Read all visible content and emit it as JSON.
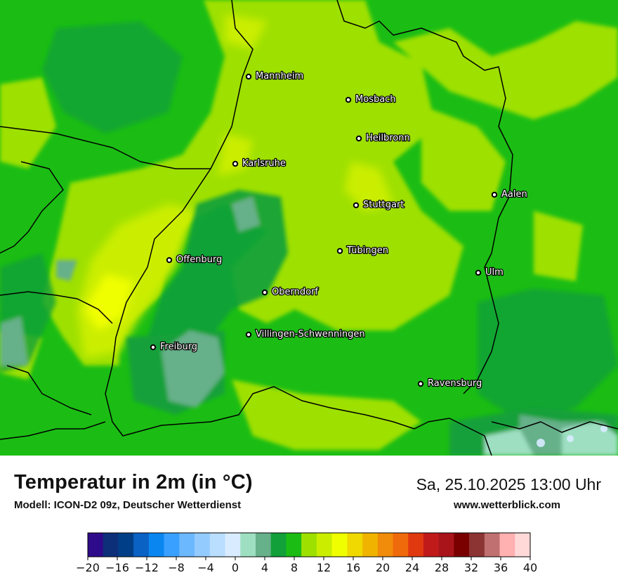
{
  "title": "Temperatur in 2m (in °C)",
  "subtitle": "Modell: ICON-D2 09z, Deutscher Wetterdienst",
  "datetime": "Sa, 25.10.2025 13:00 Uhr",
  "website": "www.wetterblick.com",
  "cities": [
    {
      "name": "Mannheim"
    },
    {
      "name": "Mosbach"
    },
    {
      "name": "Heilbronn"
    },
    {
      "name": "Karlsruhe"
    },
    {
      "name": "Aalen"
    },
    {
      "name": "Stuttgart"
    },
    {
      "name": "Tübingen"
    },
    {
      "name": "Offenburg"
    },
    {
      "name": "Ulm"
    },
    {
      "name": "Oberndorf"
    },
    {
      "name": "Villingen-Schwenningen"
    },
    {
      "name": "Freiburg"
    },
    {
      "name": "Ravensburg"
    }
  ],
  "legend": {
    "colors": [
      "#2e0b8a",
      "#0d2f7a",
      "#003f87",
      "#0a62c4",
      "#0a86f0",
      "#3aa0ff",
      "#6cb8ff",
      "#94cbff",
      "#b9deff",
      "#d9ecff",
      "#9edfc2",
      "#66b08a",
      "#12a03a",
      "#1bbd14",
      "#9ee000",
      "#cbee00",
      "#f0ff00",
      "#f0d900",
      "#f0b400",
      "#f08c0a",
      "#ef6a0a",
      "#e0390f",
      "#c11a1a",
      "#a8141a",
      "#7a0000",
      "#8c3333",
      "#c07070",
      "#ffb0b0",
      "#ffd8d8"
    ],
    "ticks": [
      "−20",
      "−16",
      "−12",
      "−8",
      "−4",
      "0",
      "4",
      "8",
      "12",
      "16",
      "20",
      "24",
      "28",
      "32",
      "36",
      "40"
    ]
  }
}
